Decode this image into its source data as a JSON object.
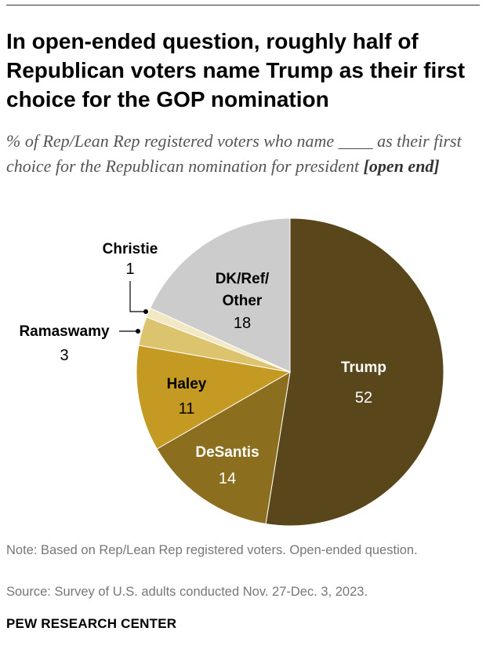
{
  "title": "In open-ended question, roughly half of Republican voters name Trump as their first choice for the GOP nomination",
  "subtitle_text": "% of Rep/Lean Rep registered voters who name ____ as their first choice for the Republican nomination for president ",
  "subtitle_bold": "[open end]",
  "note": "Note: Based on Rep/Lean Rep registered voters. Open-ended question.",
  "source": "Source: Survey of U.S. adults conducted Nov. 27-Dec. 3, 2023.",
  "brand": "PEW RESEARCH CENTER",
  "chart_data": {
    "type": "pie",
    "slices": [
      {
        "label": "Trump",
        "value": 52,
        "color": "#59461b"
      },
      {
        "label": "DeSantis",
        "value": 14,
        "color": "#8b6f1f"
      },
      {
        "label": "Haley",
        "value": 11,
        "color": "#c49a22"
      },
      {
        "label": "Ramaswamy",
        "value": 3,
        "color": "#dcc36e"
      },
      {
        "label": "Christie",
        "value": 1,
        "color": "#f2e9c4"
      },
      {
        "label": "DK/Ref/Other",
        "value": 18,
        "color": "#cccccc"
      }
    ],
    "start": "12 o'clock",
    "direction": "clockwise"
  }
}
